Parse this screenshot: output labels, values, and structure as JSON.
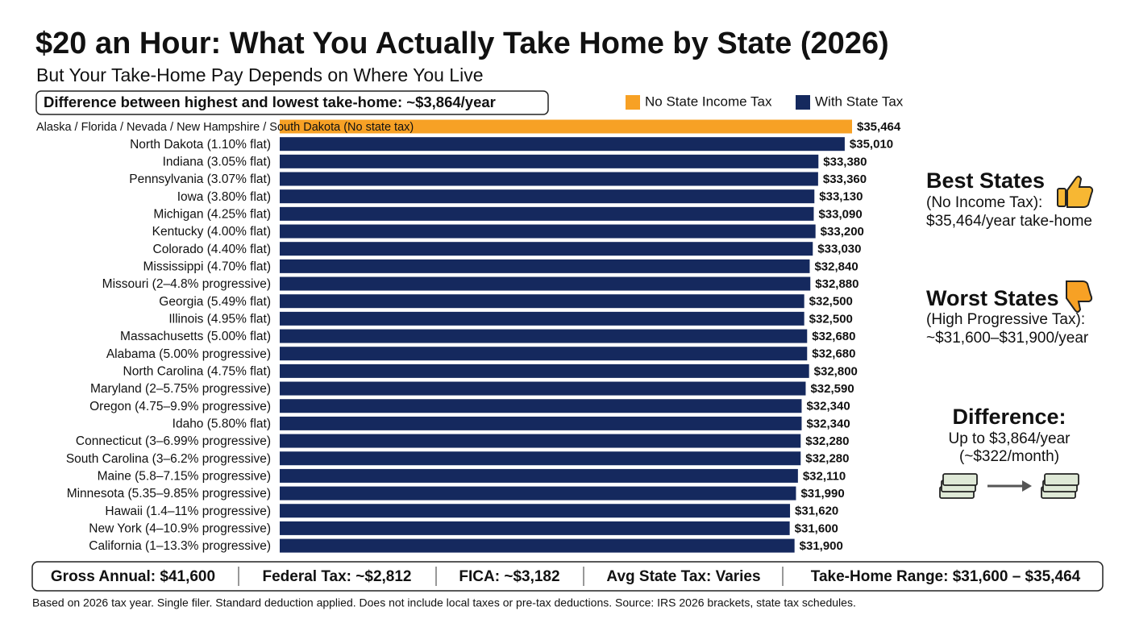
{
  "chart_data": {
    "type": "bar",
    "orientation": "horizontal",
    "title": "$20 an Hour: What You Actually Take Home by State (2026)",
    "subtitle": "But Your Take-Home Pay Depends on Where You Live",
    "categories": [
      "Alaska / Florida / Nevada / New Hampshire / South Dakota (No state tax)",
      "North Dakota (1.10% flat)",
      "Indiana (3.05% flat)",
      "Pennsylvania (3.07% flat)",
      "Iowa (3.80% flat)",
      "Michigan (4.25% flat)",
      "Kentucky (4.00% flat)",
      "Colorado (4.40% flat)",
      "Mississippi (4.70% flat)",
      "Missouri (2–4.8% progressive)",
      "Georgia (5.49% flat)",
      "Illinois (4.95% flat)",
      "Massachusetts (5.00% flat)",
      "Alabama (5.00% progressive)",
      "North Carolina (4.75% flat)",
      "Maryland (2–5.75% progressive)",
      "Oregon (4.75–9.9% progressive)",
      "Idaho (5.80% flat)",
      "Connecticut (3–6.99% progressive)",
      "South Carolina (3–6.2% progressive)",
      "Maine (5.8–7.15% progressive)",
      "Minnesota (5.35–9.85% progressive)",
      "Hawaii (1.4–11% progressive)",
      "New York (4–10.9% progressive)",
      "California (1–13.3% progressive)"
    ],
    "series": [
      {
        "name": "No State Income Tax",
        "color": "#f7a125",
        "values": [
          35464,
          null,
          null,
          null,
          null,
          null,
          null,
          null,
          null,
          null,
          null,
          null,
          null,
          null,
          null,
          null,
          null,
          null,
          null,
          null,
          null,
          null,
          null,
          null,
          null
        ],
        "value_labels": [
          "$35,464",
          null,
          null,
          null,
          null,
          null,
          null,
          null,
          null,
          null,
          null,
          null,
          null,
          null,
          null,
          null,
          null,
          null,
          null,
          null,
          null,
          null,
          null,
          null,
          null
        ]
      },
      {
        "name": "With State Tax",
        "color": "#15295e",
        "values": [
          null,
          35010,
          33380,
          33360,
          33130,
          33090,
          33200,
          33030,
          32840,
          32880,
          32500,
          32500,
          32680,
          32680,
          32800,
          32590,
          32340,
          32340,
          32280,
          32280,
          32110,
          31990,
          31620,
          31600,
          31900
        ],
        "value_labels": [
          null,
          "$35,010",
          "$33,380",
          "$33,360",
          "$33,130",
          "$33,090",
          "$33,200",
          "$33,030",
          "$32,840",
          "$32,880",
          "$32,500",
          "$32,500",
          "$32,680",
          "$32,680",
          "$32,800",
          "$32,590",
          "$32,340",
          "$32,340",
          "$32,280",
          "$32,280",
          "$32,110",
          "$31,990",
          "$31,620",
          "$31,600",
          "$31,900"
        ]
      }
    ],
    "callout": "Difference between highest and lowest take-home: ~$3,864/year"
  },
  "side_panels": [
    {
      "heading": "Best States",
      "lines": [
        "(No Income Tax):",
        "$35,464/year take-home"
      ]
    },
    {
      "heading": "Worst States",
      "lines": [
        "(High Progressive Tax):",
        "~$31,600–$31,900/year"
      ]
    },
    {
      "heading": "Difference:",
      "lines": [
        "Up to $3,864/year",
        "(~$322/month)"
      ]
    }
  ],
  "summary": [
    "Gross Annual: $41,600",
    "Federal Tax: ~$2,812",
    "FICA: ~$3,182",
    "Avg State Tax: Varies",
    "Take-Home Range: $31,600 – $35,464"
  ],
  "footnote": "Based on 2026 tax year. Single filer. Standard deduction applied. Does not include local taxes or pre-tax deductions. Source: IRS 2026 brackets, state tax schedules."
}
